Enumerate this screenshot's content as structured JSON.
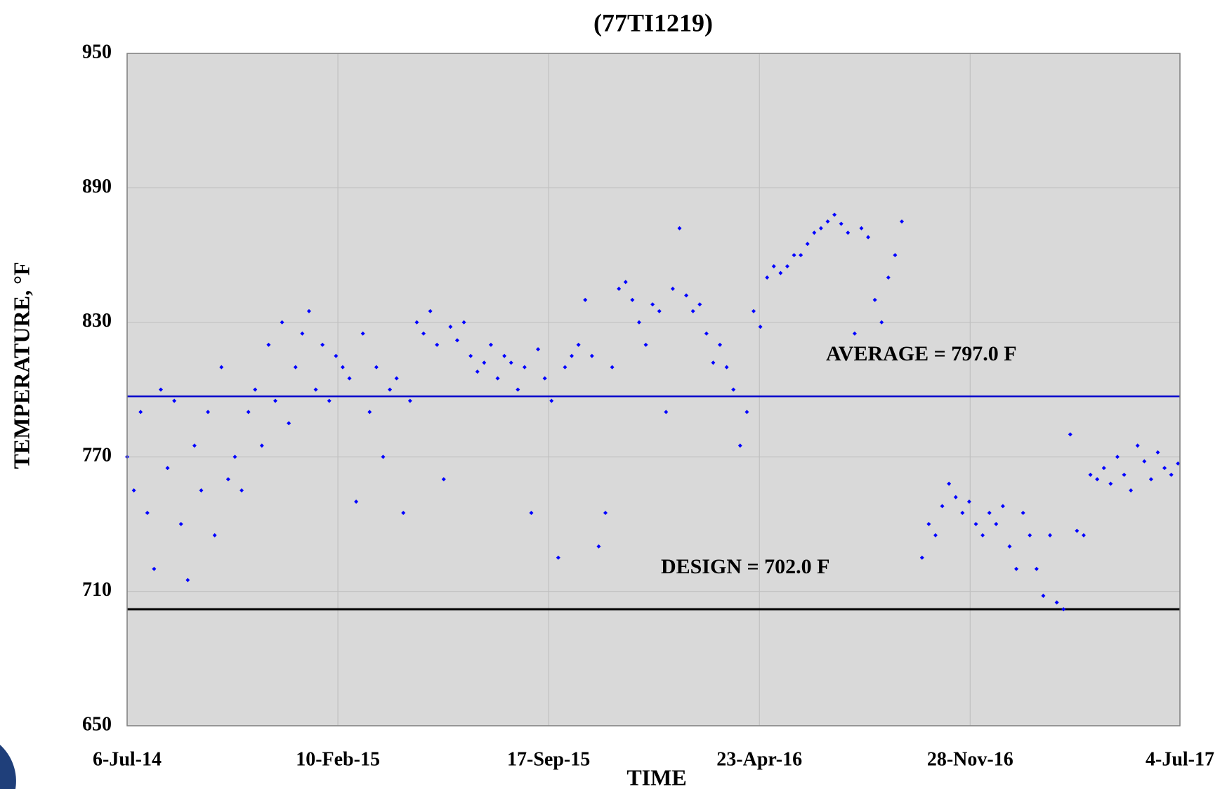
{
  "chart_data": {
    "type": "scatter",
    "title": "(77TI1219)",
    "x_label": "TIME",
    "y_label": "TEMPERATURE, °F",
    "color": "#0000ff",
    "xlim": [
      "2014-07-06",
      "2017-07-04"
    ],
    "xticks": [
      {
        "value": "2014-07-06",
        "label": "6-Jul-14"
      },
      {
        "value": "2015-02-10",
        "label": "10-Feb-15"
      },
      {
        "value": "2015-09-17",
        "label": "17-Sep-15"
      },
      {
        "value": "2016-04-23",
        "label": "23-Apr-16"
      },
      {
        "value": "2016-11-28",
        "label": "28-Nov-16"
      },
      {
        "value": "2017-07-04",
        "label": "4-Jul-17"
      }
    ],
    "ylim": [
      650,
      950
    ],
    "yticks": [
      650,
      710,
      770,
      830,
      890,
      950
    ],
    "grid": true,
    "reference_lines": [
      {
        "value": 797,
        "label": "AVERAGE = 797.0 F",
        "color": "#0000cc"
      },
      {
        "value": 702,
        "label": "DESIGN = 702.0 F",
        "color": "#000000"
      }
    ],
    "x": [
      "2014-07-06",
      "2014-07-13",
      "2014-07-20",
      "2014-07-27",
      "2014-08-03",
      "2014-08-10",
      "2014-08-17",
      "2014-08-24",
      "2014-08-31",
      "2014-09-07",
      "2014-09-14",
      "2014-09-21",
      "2014-09-28",
      "2014-10-05",
      "2014-10-12",
      "2014-10-19",
      "2014-10-26",
      "2014-11-02",
      "2014-11-09",
      "2014-11-16",
      "2014-11-23",
      "2014-11-30",
      "2014-12-07",
      "2014-12-14",
      "2014-12-21",
      "2014-12-28",
      "2015-01-04",
      "2015-01-11",
      "2015-01-18",
      "2015-01-25",
      "2015-02-01",
      "2015-02-08",
      "2015-02-15",
      "2015-02-22",
      "2015-03-01",
      "2015-03-08",
      "2015-03-15",
      "2015-03-22",
      "2015-03-29",
      "2015-04-05",
      "2015-04-12",
      "2015-04-19",
      "2015-04-26",
      "2015-05-03",
      "2015-05-10",
      "2015-05-17",
      "2015-05-24",
      "2015-05-31",
      "2015-06-07",
      "2015-06-14",
      "2015-06-21",
      "2015-06-28",
      "2015-07-05",
      "2015-07-12",
      "2015-07-19",
      "2015-07-26",
      "2015-08-02",
      "2015-08-09",
      "2015-08-16",
      "2015-08-23",
      "2015-08-30",
      "2015-09-06",
      "2015-09-13",
      "2015-09-20",
      "2015-09-27",
      "2015-10-04",
      "2015-10-11",
      "2015-10-18",
      "2015-10-25",
      "2015-11-01",
      "2015-11-08",
      "2015-11-15",
      "2015-11-22",
      "2015-11-29",
      "2015-12-06",
      "2015-12-13",
      "2015-12-20",
      "2015-12-27",
      "2016-01-03",
      "2016-01-10",
      "2016-01-17",
      "2016-01-24",
      "2016-01-31",
      "2016-02-07",
      "2016-02-14",
      "2016-02-21",
      "2016-02-28",
      "2016-03-06",
      "2016-03-13",
      "2016-03-20",
      "2016-03-27",
      "2016-04-03",
      "2016-04-10",
      "2016-04-17",
      "2016-04-24",
      "2016-05-01",
      "2016-05-08",
      "2016-05-15",
      "2016-05-22",
      "2016-05-29",
      "2016-06-05",
      "2016-06-12",
      "2016-06-19",
      "2016-06-26",
      "2016-07-03",
      "2016-07-10",
      "2016-07-17",
      "2016-07-24",
      "2016-07-31",
      "2016-08-07",
      "2016-08-14",
      "2016-08-21",
      "2016-08-28",
      "2016-09-04",
      "2016-09-11",
      "2016-09-18",
      "2016-10-09",
      "2016-10-16",
      "2016-10-23",
      "2016-10-30",
      "2016-11-06",
      "2016-11-13",
      "2016-11-20",
      "2016-11-27",
      "2016-12-04",
      "2016-12-11",
      "2016-12-18",
      "2016-12-25",
      "2017-01-01",
      "2017-01-08",
      "2017-01-15",
      "2017-01-22",
      "2017-01-29",
      "2017-02-05",
      "2017-02-12",
      "2017-02-19",
      "2017-02-26",
      "2017-03-05",
      "2017-03-12",
      "2017-03-19",
      "2017-03-26",
      "2017-04-02",
      "2017-04-09",
      "2017-04-16",
      "2017-04-23",
      "2017-04-30",
      "2017-05-07",
      "2017-05-14",
      "2017-05-21",
      "2017-05-28",
      "2017-06-04",
      "2017-06-11",
      "2017-06-18",
      "2017-06-25",
      "2017-07-02"
    ],
    "values": [
      770,
      755,
      790,
      745,
      720,
      800,
      765,
      795,
      740,
      715,
      775,
      755,
      790,
      735,
      810,
      760,
      770,
      755,
      790,
      800,
      775,
      820,
      795,
      830,
      785,
      810,
      825,
      835,
      800,
      820,
      795,
      815,
      810,
      805,
      750,
      825,
      790,
      810,
      770,
      800,
      805,
      745,
      795,
      830,
      825,
      835,
      820,
      760,
      828,
      822,
      830,
      815,
      808,
      812,
      820,
      805,
      815,
      812,
      800,
      810,
      745,
      818,
      805,
      795,
      725,
      810,
      815,
      820,
      840,
      815,
      730,
      745,
      810,
      845,
      848,
      840,
      830,
      820,
      838,
      835,
      790,
      845,
      872,
      842,
      835,
      838,
      825,
      812,
      820,
      810,
      800,
      775,
      790,
      835,
      828,
      850,
      855,
      852,
      855,
      860,
      860,
      865,
      870,
      872,
      875,
      878,
      874,
      870,
      825,
      872,
      868,
      840,
      830,
      850,
      860,
      875,
      725,
      740,
      735,
      748,
      758,
      752,
      745,
      750,
      740,
      735,
      745,
      740,
      748,
      730,
      720,
      745,
      735,
      720,
      708,
      735,
      705,
      702,
      780,
      737,
      735,
      762,
      760,
      765,
      758,
      770,
      762,
      755,
      775,
      768,
      760,
      772,
      765,
      762,
      767
    ]
  }
}
